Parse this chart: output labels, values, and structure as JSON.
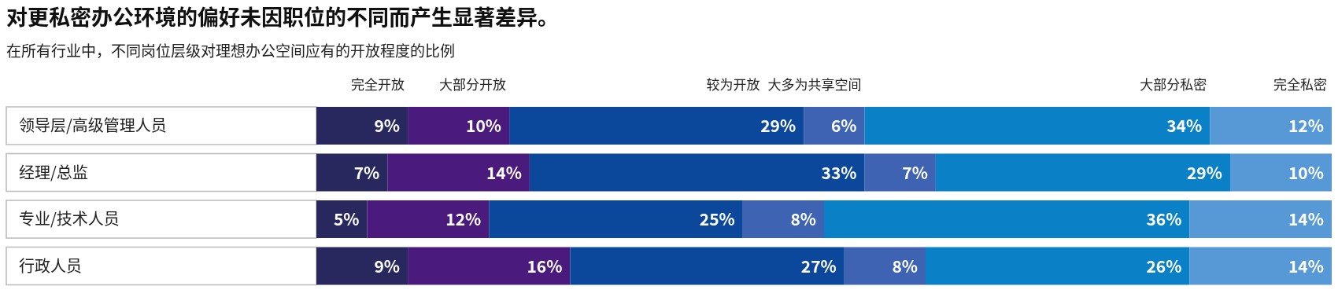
{
  "chart_data": {
    "type": "bar",
    "orientation": "horizontal",
    "stacked": true,
    "legend": "top",
    "title": "对更私密办公环境的偏好未因职位的不同而产生显著差异。",
    "subtitle": "在所有行业中，不同岗位层级对理想办公空间应有的开放程度的比例",
    "categories": [
      "领导层/高级管理人员",
      "经理/总监",
      "专业/技术人员",
      "行政人员"
    ],
    "series": [
      {
        "name": "完全开放",
        "color": "#28285e",
        "values": [
          9,
          7,
          5,
          9
        ],
        "value_labels": [
          "9%",
          "7%",
          "5%",
          "9%"
        ]
      },
      {
        "name": "大部分开放",
        "color": "#4a1a7c",
        "values": [
          10,
          14,
          12,
          16
        ],
        "value_labels": [
          "10%",
          "14%",
          "12%",
          "16%"
        ]
      },
      {
        "name": "较为开放",
        "color": "#0b479b",
        "values": [
          29,
          33,
          25,
          27
        ],
        "value_labels": [
          "29%",
          "33%",
          "25%",
          "27%"
        ]
      },
      {
        "name": "大多为共享空间",
        "color": "#3e63b2",
        "values": [
          6,
          7,
          8,
          8
        ],
        "value_labels": [
          "6%",
          "7%",
          "8%",
          "8%"
        ]
      },
      {
        "name": "大部分私密",
        "color": "#0a80c6",
        "values": [
          34,
          29,
          36,
          26
        ],
        "value_labels": [
          "34%",
          "29%",
          "36%",
          "26%"
        ]
      },
      {
        "name": "完全私密",
        "color": "#5699d6",
        "values": [
          12,
          10,
          14,
          14
        ],
        "value_labels": [
          "12%",
          "10%",
          "14%",
          "14%"
        ]
      }
    ]
  }
}
